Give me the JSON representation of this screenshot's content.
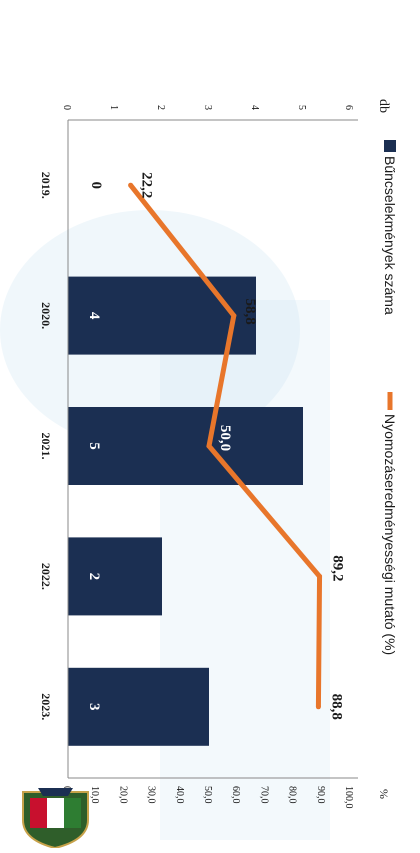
{
  "colors": {
    "bar": "#1b2f52",
    "line": "#e8762b",
    "bar_label": "#ffffff",
    "text": "#1a1a1a",
    "background_art": "#c9e2f2"
  },
  "logo": {
    "type": "police-shield-emblem",
    "text": "RENDŐRSÉG"
  },
  "chart_data": {
    "type": "bar",
    "categories": [
      "2019.",
      "2020.",
      "2021.",
      "2022.",
      "2023."
    ],
    "series": [
      {
        "name": "Bűncselekmények száma",
        "type": "bar",
        "axis": "left",
        "values": [
          0,
          4,
          5,
          2,
          3
        ],
        "labels": [
          "0",
          "4",
          "5",
          "2",
          "3"
        ]
      },
      {
        "name": "Nyomozáseredményességi mutató (%)",
        "type": "line",
        "axis": "right",
        "values": [
          22.2,
          58.8,
          50.0,
          89.2,
          88.8
        ],
        "labels": [
          "22,2",
          "58,8",
          "50,0",
          "89,2",
          "88,8"
        ]
      }
    ],
    "left_axis": {
      "unit": "db",
      "range": [
        0,
        6
      ],
      "ticks": [
        "0",
        "1",
        "2",
        "3",
        "4",
        "5",
        "6"
      ]
    },
    "right_axis": {
      "unit": "%",
      "range": [
        0,
        100
      ],
      "ticks": [
        "0,0",
        "10,0",
        "20,0",
        "30,0",
        "40,0",
        "50,0",
        "60,0",
        "70,0",
        "80,0",
        "90,0",
        "100,0"
      ]
    },
    "legend_position": "top",
    "orientation": "rotated-90-clockwise",
    "grid": false
  }
}
